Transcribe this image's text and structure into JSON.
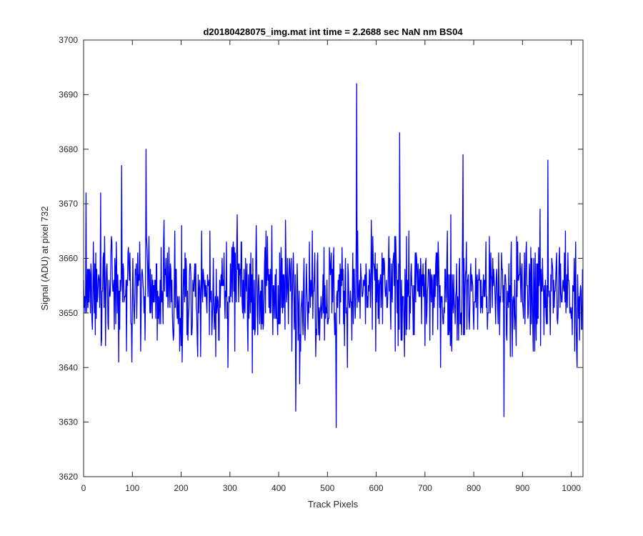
{
  "chart_data": {
    "type": "line",
    "title": "d20180428075_img.mat int time = 2.2688 sec  NaN nm BS04",
    "xlabel": "Track Pixels",
    "ylabel": "Signal (ADU) at pixel 732",
    "xlim": [
      0,
      1024
    ],
    "ylim": [
      3620,
      3700
    ],
    "xticks": [
      0,
      100,
      200,
      300,
      400,
      500,
      600,
      700,
      800,
      900,
      1000
    ],
    "yticks": [
      3620,
      3630,
      3640,
      3650,
      3660,
      3670,
      3680,
      3690,
      3700
    ],
    "grid": false,
    "series_color": "#0000ff",
    "series": [
      {
        "points_count": 1024,
        "mean": 3654,
        "min": 3629,
        "max": 3692,
        "notable_points": [
          {
            "x": 5,
            "y": 3672
          },
          {
            "x": 35,
            "y": 3672
          },
          {
            "x": 78,
            "y": 3677
          },
          {
            "x": 128,
            "y": 3680
          },
          {
            "x": 315,
            "y": 3668
          },
          {
            "x": 435,
            "y": 3632
          },
          {
            "x": 518,
            "y": 3629
          },
          {
            "x": 560,
            "y": 3692
          },
          {
            "x": 648,
            "y": 3683
          },
          {
            "x": 778,
            "y": 3679
          },
          {
            "x": 862,
            "y": 3631
          },
          {
            "x": 952,
            "y": 3678
          },
          {
            "x": 1012,
            "y": 3640
          }
        ]
      }
    ]
  }
}
